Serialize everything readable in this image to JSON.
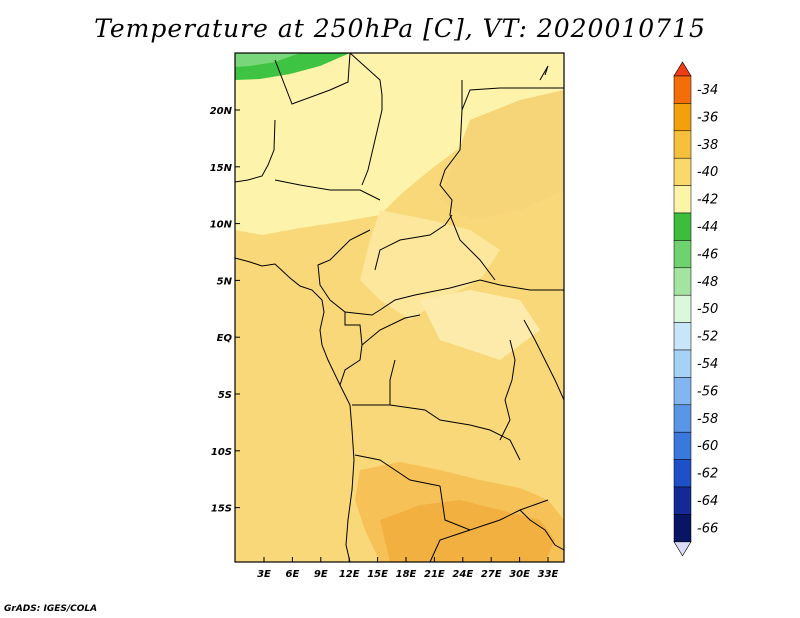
{
  "title": "Temperature at 250hPa [C], VT: 2020010715",
  "credit": "GrADS: IGES/COLA",
  "map": {
    "lon_labels": [
      "3E",
      "6E",
      "9E",
      "12E",
      "15E",
      "18E",
      "21E",
      "24E",
      "27E",
      "30E",
      "33E"
    ],
    "lat_labels": [
      "20N",
      "15N",
      "10N",
      "5N",
      "EQ",
      "5S",
      "10S",
      "15S"
    ]
  },
  "colorbar": {
    "labels": [
      "-34",
      "-36",
      "-38",
      "-40",
      "-42",
      "-44",
      "-46",
      "-48",
      "-50",
      "-52",
      "-54",
      "-56",
      "-58",
      "-60",
      "-62",
      "-64",
      "-66"
    ],
    "colors": [
      "#f03c14",
      "#f36e0a",
      "#f4a00a",
      "#f6bf3c",
      "#f9d86c",
      "#fcf5a8",
      "#3cbe3c",
      "#6ed26e",
      "#a4e4a0",
      "#dcf8dc",
      "#c8e6fa",
      "#a6d2f6",
      "#82b6f0",
      "#5a96e6",
      "#3a78dc",
      "#1e50c8",
      "#142896",
      "#0a1464",
      "#dcdcf8"
    ]
  }
}
